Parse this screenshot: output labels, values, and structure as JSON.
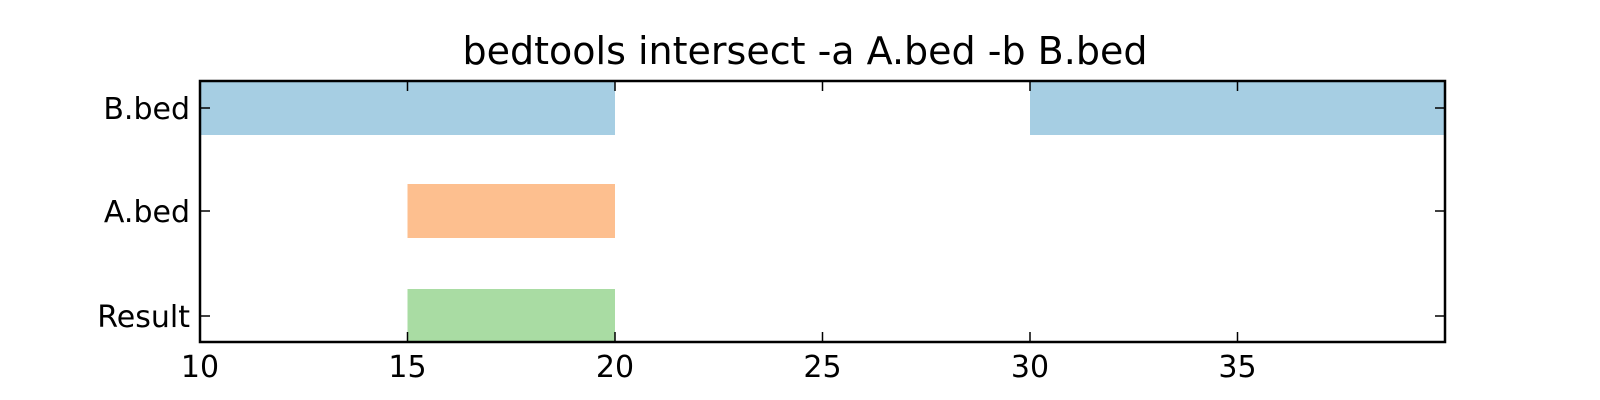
{
  "chart_data": {
    "type": "bar",
    "orientation": "horizontal-intervals",
    "title": "bedtools intersect -a A.bed -b B.bed",
    "xlabel": "",
    "ylabel": "",
    "xlim": [
      10,
      40
    ],
    "x_ticks": [
      10,
      15,
      20,
      25,
      30,
      35
    ],
    "grid": false,
    "tracks": [
      {
        "label": "B.bed",
        "color": "#a6cee3",
        "intervals": [
          [
            10,
            20
          ],
          [
            30,
            40
          ]
        ]
      },
      {
        "label": "A.bed",
        "color": "#fdbf8f",
        "intervals": [
          [
            15,
            20
          ]
        ]
      },
      {
        "label": "Result",
        "color": "#a9dca3",
        "intervals": [
          [
            15,
            20
          ]
        ]
      }
    ]
  }
}
